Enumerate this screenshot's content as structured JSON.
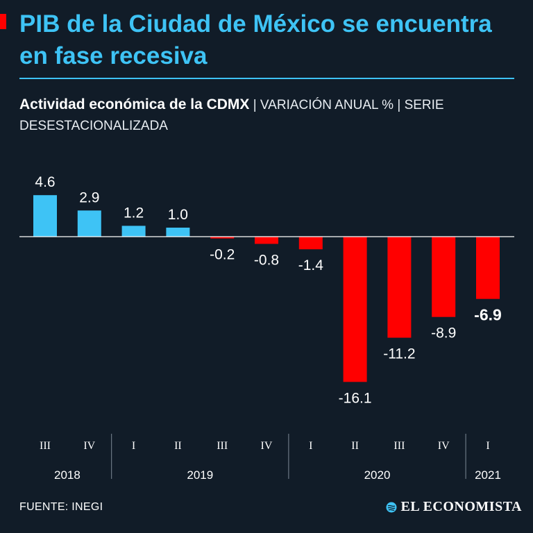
{
  "header": {
    "title": "PIB de la Ciudad de México se encuentra en fase recesiva",
    "subtitle_strong": "Actividad económica de la CDMX",
    "subtitle_light": "| VARIACIÓN ANUAL % | SERIE DESESTACIONALIZADA"
  },
  "colors": {
    "positive": "#3ec3f5",
    "negative": "#ff0000",
    "accent": "#3ec3f5",
    "background": "#111c28"
  },
  "chart_data": {
    "type": "bar",
    "title": "Actividad económica de la CDMX",
    "ylabel": "VARIACIÓN ANUAL %",
    "categories": [
      "III",
      "IV",
      "I",
      "II",
      "III",
      "IV",
      "I",
      "II",
      "III",
      "IV",
      "I"
    ],
    "values": [
      4.6,
      2.9,
      1.2,
      1.0,
      -0.2,
      -0.8,
      -1.4,
      -16.1,
      -11.2,
      -8.9,
      -6.9
    ],
    "value_labels": [
      "4.6",
      "2.9",
      "1.2",
      "1.0",
      "-0.2",
      "-0.8",
      "-1.4",
      "-16.1",
      "-11.2",
      "-8.9",
      "-6.9"
    ],
    "highlight_index": 10,
    "years": [
      {
        "label": "2018",
        "quarters": 2
      },
      {
        "label": "2019",
        "quarters": 4
      },
      {
        "label": "2020",
        "quarters": 4
      },
      {
        "label": "2021",
        "quarters": 1
      }
    ],
    "ylim": [
      -16.1,
      4.6
    ]
  },
  "footer": {
    "source": "FUENTE: INEGI",
    "brand": "EL ECONOMISTA"
  }
}
